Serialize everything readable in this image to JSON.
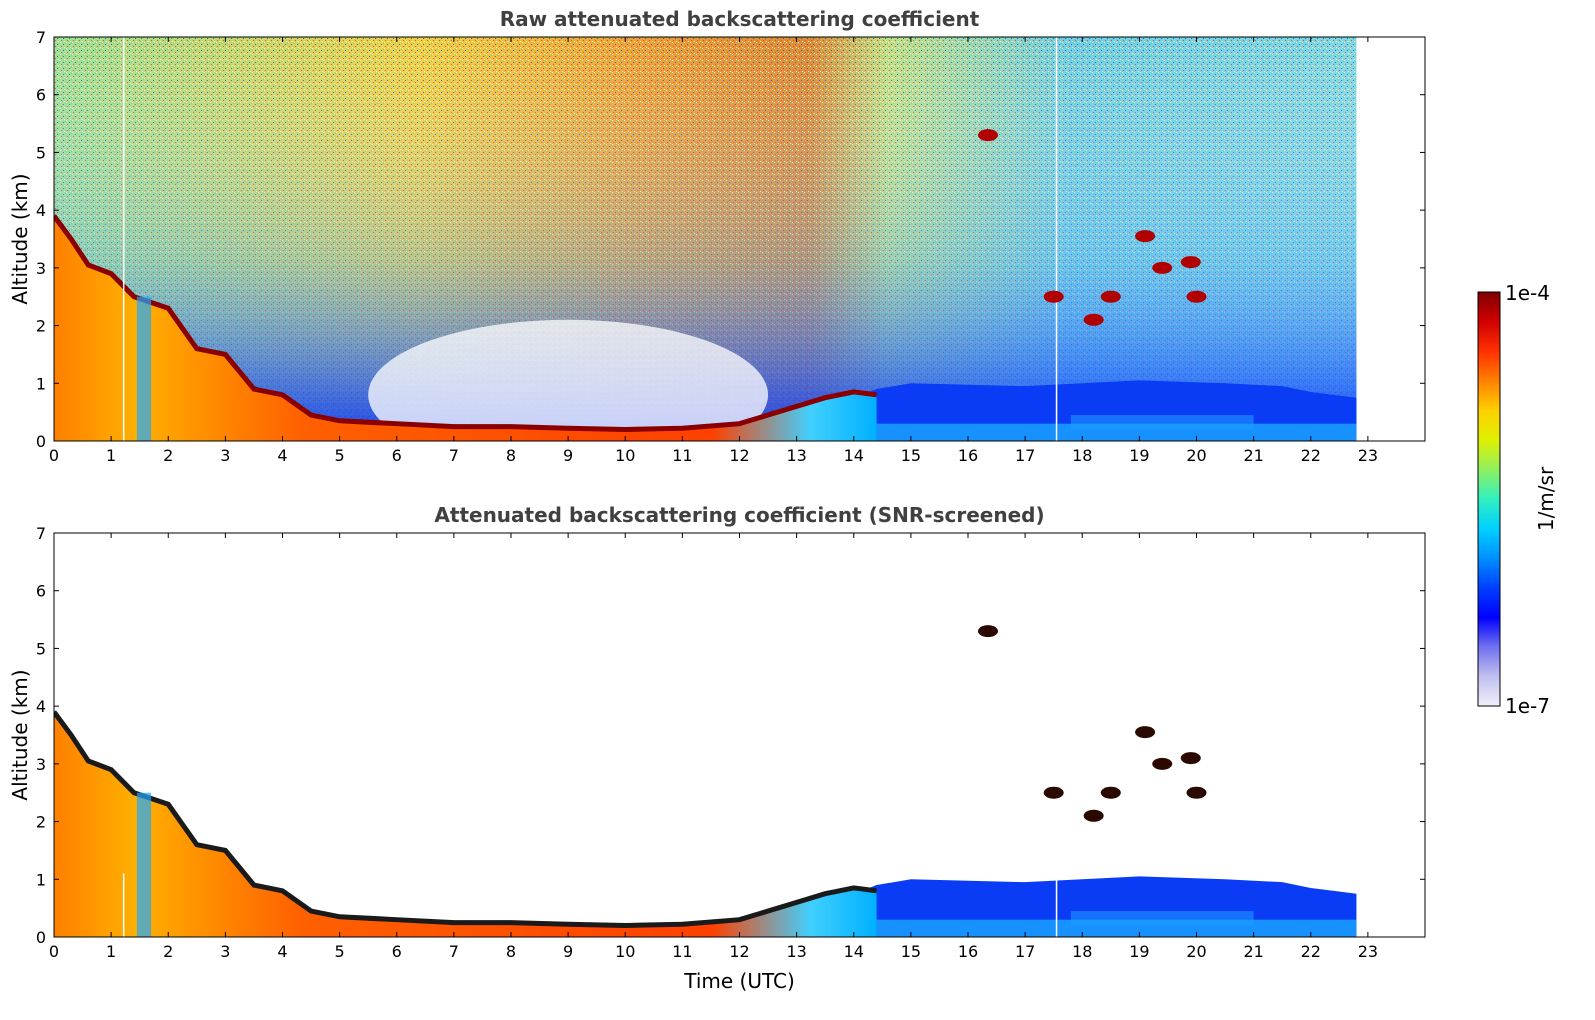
{
  "chart_data": [
    {
      "type": "heatmap",
      "title": "Raw attenuated backscattering coefficient",
      "xlabel": "",
      "ylabel": "Altitude (km)",
      "xlim": [
        0,
        24
      ],
      "ylim": [
        0,
        7
      ],
      "x_ticks": [
        "0",
        "1",
        "2",
        "3",
        "4",
        "5",
        "6",
        "7",
        "8",
        "9",
        "10",
        "11",
        "12",
        "13",
        "14",
        "15",
        "16",
        "17",
        "18",
        "19",
        "20",
        "21",
        "22",
        "23"
      ],
      "y_ticks": [
        "0",
        "1",
        "2",
        "3",
        "4",
        "5",
        "6",
        "7"
      ],
      "data_end_time": 22.8,
      "screened": false,
      "boundary_layer_top_km": [
        [
          0,
          3.9
        ],
        [
          0.3,
          3.5
        ],
        [
          0.6,
          3.05
        ],
        [
          1.0,
          2.9
        ],
        [
          1.4,
          2.5
        ],
        [
          2.0,
          2.3
        ],
        [
          2.5,
          1.6
        ],
        [
          3.0,
          1.5
        ],
        [
          3.5,
          0.9
        ],
        [
          4.0,
          0.8
        ],
        [
          4.5,
          0.45
        ],
        [
          5,
          0.35
        ],
        [
          6,
          0.3
        ],
        [
          7,
          0.25
        ],
        [
          8,
          0.25
        ],
        [
          9,
          0.22
        ],
        [
          10,
          0.2
        ],
        [
          11,
          0.22
        ],
        [
          12,
          0.3
        ],
        [
          12.5,
          0.45
        ],
        [
          13,
          0.6
        ],
        [
          13.5,
          0.75
        ],
        [
          14,
          0.85
        ],
        [
          14.4,
          0.8
        ]
      ],
      "cloud_patches": [
        {
          "time": 16.35,
          "altitude_km": 5.3
        },
        {
          "time": 17.5,
          "altitude_km": 2.5
        },
        {
          "time": 18.2,
          "altitude_km": 2.1
        },
        {
          "time": 18.5,
          "altitude_km": 2.5
        },
        {
          "time": 19.1,
          "altitude_km": 3.55
        },
        {
          "time": 19.4,
          "altitude_km": 3.0
        },
        {
          "time": 19.9,
          "altitude_km": 3.1
        },
        {
          "time": 20.0,
          "altitude_km": 2.5
        }
      ]
    },
    {
      "type": "heatmap",
      "title": "Attenuated backscattering coefficient (SNR-screened)",
      "xlabel": "Time (UTC)",
      "ylabel": "Altitude (km)",
      "xlim": [
        0,
        24
      ],
      "ylim": [
        0,
        7
      ],
      "x_ticks": [
        "0",
        "1",
        "2",
        "3",
        "4",
        "5",
        "6",
        "7",
        "8",
        "9",
        "10",
        "11",
        "12",
        "13",
        "14",
        "15",
        "16",
        "17",
        "18",
        "19",
        "20",
        "21",
        "22",
        "23"
      ],
      "y_ticks": [
        "0",
        "1",
        "2",
        "3",
        "4",
        "5",
        "6",
        "7"
      ],
      "data_end_time": 22.8,
      "screened": true,
      "boundary_layer_top_km": [
        [
          0,
          3.9
        ],
        [
          0.3,
          3.5
        ],
        [
          0.6,
          3.05
        ],
        [
          1.0,
          2.9
        ],
        [
          1.4,
          2.5
        ],
        [
          2.0,
          2.3
        ],
        [
          2.5,
          1.6
        ],
        [
          3.0,
          1.5
        ],
        [
          3.5,
          0.9
        ],
        [
          4.0,
          0.8
        ],
        [
          4.5,
          0.45
        ],
        [
          5,
          0.35
        ],
        [
          6,
          0.3
        ],
        [
          7,
          0.25
        ],
        [
          8,
          0.25
        ],
        [
          9,
          0.22
        ],
        [
          10,
          0.2
        ],
        [
          11,
          0.22
        ],
        [
          12,
          0.3
        ],
        [
          12.5,
          0.45
        ],
        [
          13,
          0.6
        ],
        [
          13.5,
          0.75
        ],
        [
          14,
          0.85
        ],
        [
          14.4,
          0.8
        ]
      ],
      "cloud_patches": [
        {
          "time": 16.35,
          "altitude_km": 5.3
        },
        {
          "time": 17.5,
          "altitude_km": 2.5
        },
        {
          "time": 18.2,
          "altitude_km": 2.1
        },
        {
          "time": 18.5,
          "altitude_km": 2.5
        },
        {
          "time": 19.1,
          "altitude_km": 3.55
        },
        {
          "time": 19.4,
          "altitude_km": 3.0
        },
        {
          "time": 19.9,
          "altitude_km": 3.1
        },
        {
          "time": 20.0,
          "altitude_km": 2.5
        }
      ]
    }
  ],
  "colorbar": {
    "label": "1/m/sr",
    "max_label": "1e-4",
    "min_label": "1e-7",
    "scale": "log",
    "range": [
      1e-07,
      0.0001
    ],
    "colormap": [
      "#f0f0fa",
      "#c0c0f0",
      "#7070f0",
      "#0000ff",
      "#0040ff",
      "#0090ff",
      "#00d0ff",
      "#30f0c0",
      "#90f060",
      "#e0f000",
      "#ffd000",
      "#ff8000",
      "#ff3000",
      "#d00000",
      "#800000"
    ]
  }
}
